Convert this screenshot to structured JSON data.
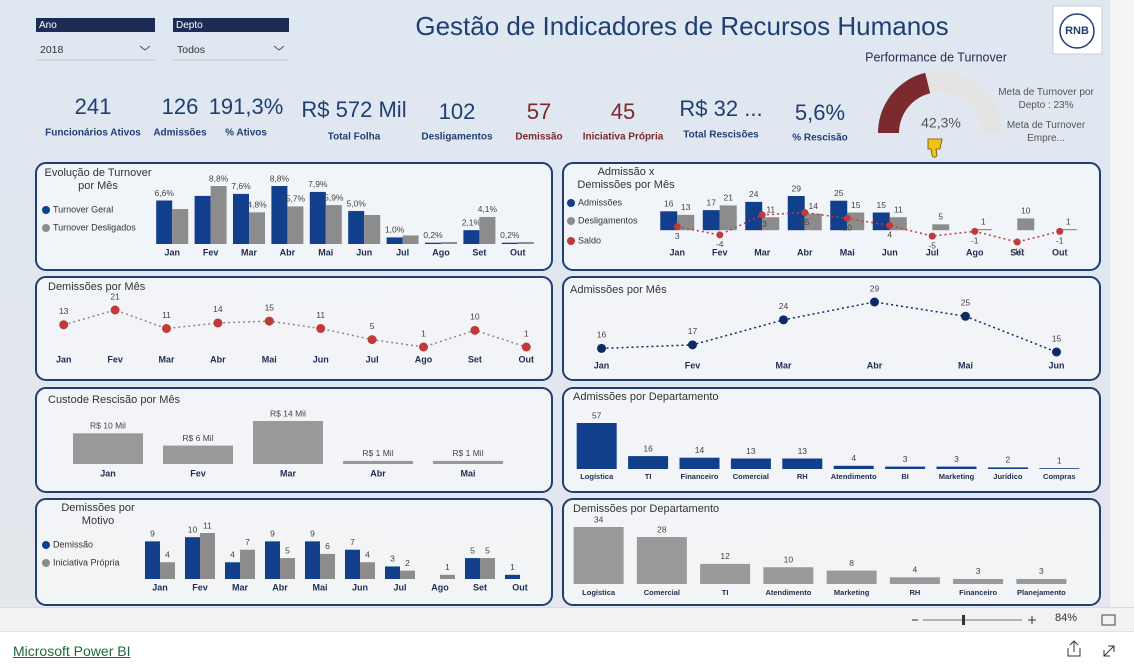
{
  "header": {
    "title": "Gestão de Indicadores de Recursos Humanos",
    "logo": "RNB"
  },
  "filters": [
    {
      "label": "Ano",
      "value": "2018"
    },
    {
      "label": "Depto",
      "value": "Todos"
    }
  ],
  "kpis": [
    {
      "value": "241",
      "label": "Funcionários Ativos",
      "color": "#1f3f73"
    },
    {
      "value": "126",
      "label": "Admissões",
      "color": "#1f3f73"
    },
    {
      "value": "191,3%",
      "label": "% Ativos",
      "color": "#1f3f73"
    },
    {
      "value": "R$ 572 Mil",
      "label": "Total Folha",
      "color": "#1f3f73"
    },
    {
      "value": "102",
      "label": "Desligamentos",
      "color": "#1f3f73"
    },
    {
      "value": "57",
      "label": "Demissão",
      "color": "#7a2a2a"
    },
    {
      "value": "45",
      "label": "Iniciativa Própria",
      "color": "#7a2a2a"
    },
    {
      "value": "R$ 32 ...",
      "label": "Total Rescisões",
      "color": "#1f3f73"
    },
    {
      "value": "5,6%",
      "label": "% Rescisão",
      "color": "#1f3f73"
    }
  ],
  "chart_data": [
    {
      "type": "gauge",
      "title": "Performance de Turnover",
      "value": 42.3,
      "value_label": "42,3%",
      "ylim": [
        0,
        100
      ],
      "color": "#7b2a2e",
      "track_color": "#e4e4e4",
      "annotations": [
        "Meta de Turnover por Depto : 23%",
        "Meta de Turnover Empre..."
      ]
    },
    {
      "type": "bar",
      "title": "Evolução de Turnover por Mês",
      "categories": [
        "Jan",
        "Fev",
        "Mar",
        "Abr",
        "Mai",
        "Jun",
        "Jul",
        "Ago",
        "Set",
        "Out"
      ],
      "series": [
        {
          "name": "Turnover Geral",
          "color": "#123f8c",
          "values": [
            6.6,
            7.3,
            7.6,
            8.8,
            7.9,
            5.0,
            1.0,
            0.2,
            2.1,
            0.2
          ],
          "value_labels": [
            "6,6%",
            null,
            "7,6%",
            "8,8%",
            "7,9%",
            "5,0%",
            "1,0%",
            "0,2%",
            "2,1%",
            "0,2%"
          ]
        },
        {
          "name": "Turnover Desligados",
          "color": "#8c8c8c",
          "values": [
            5.3,
            8.8,
            4.8,
            5.7,
            5.9,
            4.4,
            1.3,
            0.3,
            4.1,
            0.3
          ],
          "value_labels": [
            null,
            "8,8%",
            "4,8%",
            "5,7%",
            "5,9%",
            null,
            null,
            null,
            "4,1%",
            null
          ]
        }
      ]
    },
    {
      "type": "combo",
      "title": "Admissão x Demissões por Mês",
      "categories": [
        "Jan",
        "Fev",
        "Mar",
        "Abr",
        "Mai",
        "Jun",
        "Jul",
        "Ago",
        "Set",
        "Out"
      ],
      "series": [
        {
          "name": "Admissões",
          "type": "bar",
          "color": "#123f8c",
          "values": [
            16,
            17,
            24,
            29,
            25,
            15,
            null,
            null,
            null,
            null
          ]
        },
        {
          "name": "Desligamentos",
          "type": "bar",
          "color": "#8c8c8c",
          "values": [
            13,
            21,
            11,
            14,
            15,
            11,
            5,
            1,
            10,
            1
          ]
        },
        {
          "name": "Saldo",
          "type": "line",
          "color": "#c0393b",
          "values": [
            3,
            -4,
            13,
            15,
            10,
            4,
            -5,
            -1,
            -10,
            -1
          ]
        }
      ]
    },
    {
      "type": "line",
      "title": "Demissões por Mês",
      "categories": [
        "Jan",
        "Fev",
        "Mar",
        "Abr",
        "Mai",
        "Jun",
        "Jul",
        "Ago",
        "Set",
        "Out"
      ],
      "values": [
        13,
        21,
        11,
        14,
        15,
        11,
        5,
        1,
        10,
        1
      ],
      "color": "#c0393b",
      "line_color": "#8a8a8a"
    },
    {
      "type": "line",
      "title": "Admissões por Mês",
      "categories": [
        "Jan",
        "Fev",
        "Mar",
        "Abr",
        "Mai",
        "Jun"
      ],
      "values": [
        16,
        17,
        24,
        29,
        25,
        15
      ],
      "color": "#0d2a66",
      "line_color": "#0d2a66"
    },
    {
      "type": "bar",
      "title": "Custode Rescisão por Mês",
      "categories": [
        "Jan",
        "Fev",
        "Mar",
        "Abr",
        "Mai"
      ],
      "values": [
        10,
        6,
        14,
        1,
        1
      ],
      "value_labels": [
        "R$ 10 Mil",
        "R$ 6 Mil",
        "R$ 14 Mil",
        "R$ 1 Mil",
        "R$ 1 Mil"
      ],
      "color": "#999999"
    },
    {
      "type": "bar",
      "title": "Admissões por Departamento",
      "categories": [
        "Logística",
        "TI",
        "Financeiro",
        "Comercial",
        "RH",
        "Atendimento",
        "BI",
        "Marketing",
        "Jurídico",
        "Compras"
      ],
      "values": [
        57,
        16,
        14,
        13,
        13,
        4,
        3,
        3,
        2,
        1
      ],
      "color": "#123f8c"
    },
    {
      "type": "bar",
      "title": "Demissões por Motivo",
      "categories": [
        "Jan",
        "Fev",
        "Mar",
        "Abr",
        "Mai",
        "Jun",
        "Jul",
        "Ago",
        "Set",
        "Out"
      ],
      "series": [
        {
          "name": "Demissão",
          "color": "#123f8c",
          "values": [
            9,
            10,
            4,
            9,
            9,
            7,
            3,
            null,
            5,
            1
          ]
        },
        {
          "name": "Iniciativa Própria",
          "color": "#8c8c8c",
          "values": [
            4,
            11,
            7,
            5,
            6,
            4,
            2,
            1,
            5,
            null
          ]
        }
      ]
    },
    {
      "type": "bar",
      "title": "Demissões por Departamento",
      "categories": [
        "Logística",
        "Comercial",
        "TI",
        "Atendimento",
        "Marketing",
        "RH",
        "Financeiro",
        "Planejamento"
      ],
      "values": [
        34,
        28,
        12,
        10,
        8,
        4,
        3,
        3
      ],
      "color": "#999999"
    }
  ],
  "footer": {
    "brand": "Microsoft Power BI",
    "zoom": "84%"
  }
}
